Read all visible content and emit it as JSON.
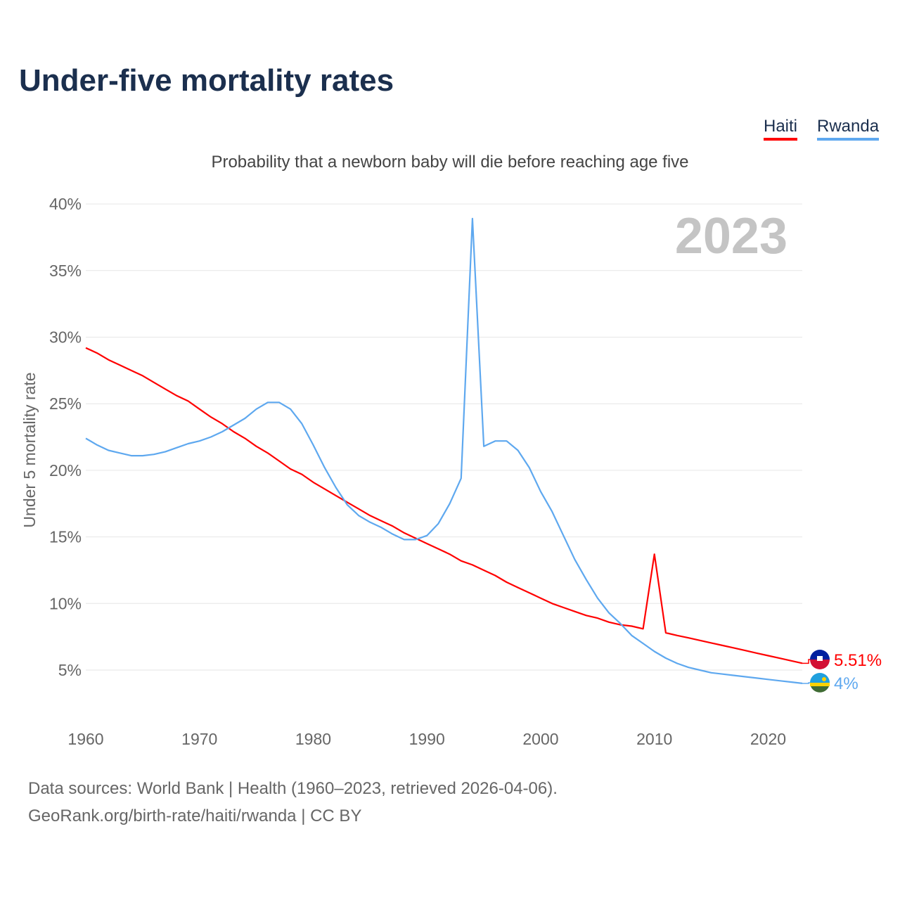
{
  "title": "Under-five mortality rates",
  "subtitle": "Probability that a newborn baby will die before reaching age five",
  "footer": {
    "line1": "Data sources: World Bank | Health (1960–2023, retrieved 2026-04-06).",
    "line2": "GeoRank.org/birth-rate/haiti/rwanda | CC BY"
  },
  "chart_data": {
    "type": "line",
    "title": "Under-five mortality rates",
    "ylabel": "Under 5 mortality rate",
    "xlabel": "",
    "year_label": "2023",
    "ylim": [
      0,
      40
    ],
    "xlim": [
      1960,
      2023
    ],
    "yticks": [
      5,
      10,
      15,
      20,
      25,
      30,
      35,
      40
    ],
    "ytick_labels": [
      "5%",
      "10%",
      "15%",
      "20%",
      "25%",
      "30%",
      "35%",
      "40%"
    ],
    "xticks": [
      1960,
      1970,
      1980,
      1990,
      2000,
      2010,
      2020
    ],
    "xtick_labels": [
      "1960",
      "1970",
      "1980",
      "1990",
      "2000",
      "2010",
      "2020"
    ],
    "legend_position": "top-right",
    "x": [
      1960,
      1961,
      1962,
      1963,
      1964,
      1965,
      1966,
      1967,
      1968,
      1969,
      1970,
      1971,
      1972,
      1973,
      1974,
      1975,
      1976,
      1977,
      1978,
      1979,
      1980,
      1981,
      1982,
      1983,
      1984,
      1985,
      1986,
      1987,
      1988,
      1989,
      1990,
      1991,
      1992,
      1993,
      1994,
      1995,
      1996,
      1997,
      1998,
      1999,
      2000,
      2001,
      2002,
      2003,
      2004,
      2005,
      2006,
      2007,
      2008,
      2009,
      2010,
      2011,
      2012,
      2013,
      2014,
      2015,
      2016,
      2017,
      2018,
      2019,
      2020,
      2021,
      2022,
      2023
    ],
    "series": [
      {
        "name": "Haiti",
        "color": "#ff0000",
        "end_label": "5.51%",
        "values": [
          29.2,
          28.8,
          28.3,
          27.9,
          27.5,
          27.1,
          26.6,
          26.1,
          25.6,
          25.2,
          24.6,
          24.0,
          23.5,
          22.9,
          22.4,
          21.8,
          21.3,
          20.7,
          20.1,
          19.7,
          19.1,
          18.6,
          18.1,
          17.6,
          17.1,
          16.6,
          16.2,
          15.8,
          15.3,
          14.9,
          14.5,
          14.1,
          13.7,
          13.2,
          12.9,
          12.5,
          12.1,
          11.6,
          11.2,
          10.8,
          10.4,
          10.0,
          9.7,
          9.4,
          9.1,
          8.9,
          8.6,
          8.4,
          8.3,
          8.1,
          13.7,
          7.8,
          7.6,
          7.42,
          7.23,
          7.04,
          6.85,
          6.66,
          6.47,
          6.27,
          6.08,
          5.89,
          5.7,
          5.51
        ]
      },
      {
        "name": "Rwanda",
        "color": "#5ea8ef",
        "end_label": "4%",
        "values": [
          22.4,
          21.9,
          21.5,
          21.3,
          21.1,
          21.1,
          21.2,
          21.4,
          21.7,
          22.0,
          22.2,
          22.5,
          22.9,
          23.4,
          23.9,
          24.6,
          25.1,
          25.1,
          24.6,
          23.5,
          21.9,
          20.2,
          18.7,
          17.4,
          16.6,
          16.1,
          15.7,
          15.2,
          14.8,
          14.8,
          15.1,
          16.0,
          17.5,
          19.4,
          38.9,
          21.8,
          22.2,
          22.2,
          21.5,
          20.2,
          18.4,
          16.9,
          15.1,
          13.3,
          11.8,
          10.4,
          9.3,
          8.5,
          7.6,
          7.0,
          6.4,
          5.9,
          5.5,
          5.2,
          5.0,
          4.8,
          4.7,
          4.6,
          4.5,
          4.4,
          4.3,
          4.2,
          4.1,
          4.0
        ]
      }
    ]
  }
}
